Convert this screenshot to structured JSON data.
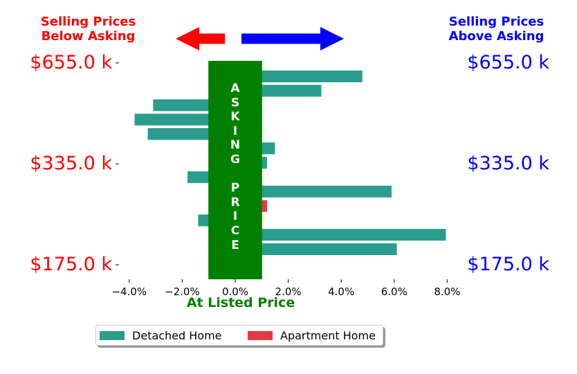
{
  "header": {
    "left": "Selling Prices\nBelow Asking",
    "right": "Selling Prices\nAbove Asking",
    "left_color": "#ff0000",
    "right_color": "#0000ff"
  },
  "banner": {
    "text": "A\nS\nK\nI\nN\nG\n\nP\nR\nI\nC\nE",
    "color": "#008000"
  },
  "x_title": "At Listed Price",
  "chart_data": {
    "type": "bar",
    "orientation": "horizontal",
    "title": "",
    "xlabel": "At Listed Price",
    "ylabel": "",
    "xlim": [
      -4.5,
      8.0
    ],
    "x_ticks": [
      -4.0,
      -2.0,
      0.0,
      2.0,
      4.0,
      6.0,
      8.0
    ],
    "x_tick_labels": [
      "−4.0%",
      "−2.0%",
      "0.0%",
      "2.0%",
      "4.0%",
      "6.0%",
      "8.0%"
    ],
    "y_tick_labels_left": [
      "$655.0 k",
      "$335.0 k",
      "$175.0 k"
    ],
    "y_tick_labels_right": [
      "$655.0 k",
      "$335.0 k",
      "$175.0 k"
    ],
    "asking_band": [
      -1.0,
      1.0
    ],
    "grid": false,
    "legend_position": "bottom-center",
    "series": [
      {
        "name": "Detached Home",
        "color": "#2a9d8f"
      },
      {
        "name": "Apartment Home",
        "color": "#e63946"
      }
    ],
    "bars": [
      {
        "value": 4.8,
        "series": 0
      },
      {
        "value": 3.25,
        "series": 0
      },
      {
        "value": -3.1,
        "series": 0
      },
      {
        "value": -3.8,
        "series": 0
      },
      {
        "value": -3.3,
        "series": 0
      },
      {
        "value": 1.5,
        "series": 0
      },
      {
        "value": 1.2,
        "series": 0
      },
      {
        "value": -1.8,
        "series": 0
      },
      {
        "value": 5.9,
        "series": 0
      },
      {
        "value": 1.2,
        "series": 1
      },
      {
        "value": -1.4,
        "series": 0
      },
      {
        "value": 7.95,
        "series": 0
      },
      {
        "value": 6.1,
        "series": 0
      }
    ]
  },
  "legend": {
    "items": [
      "Detached Home",
      "Apartment Home"
    ]
  }
}
